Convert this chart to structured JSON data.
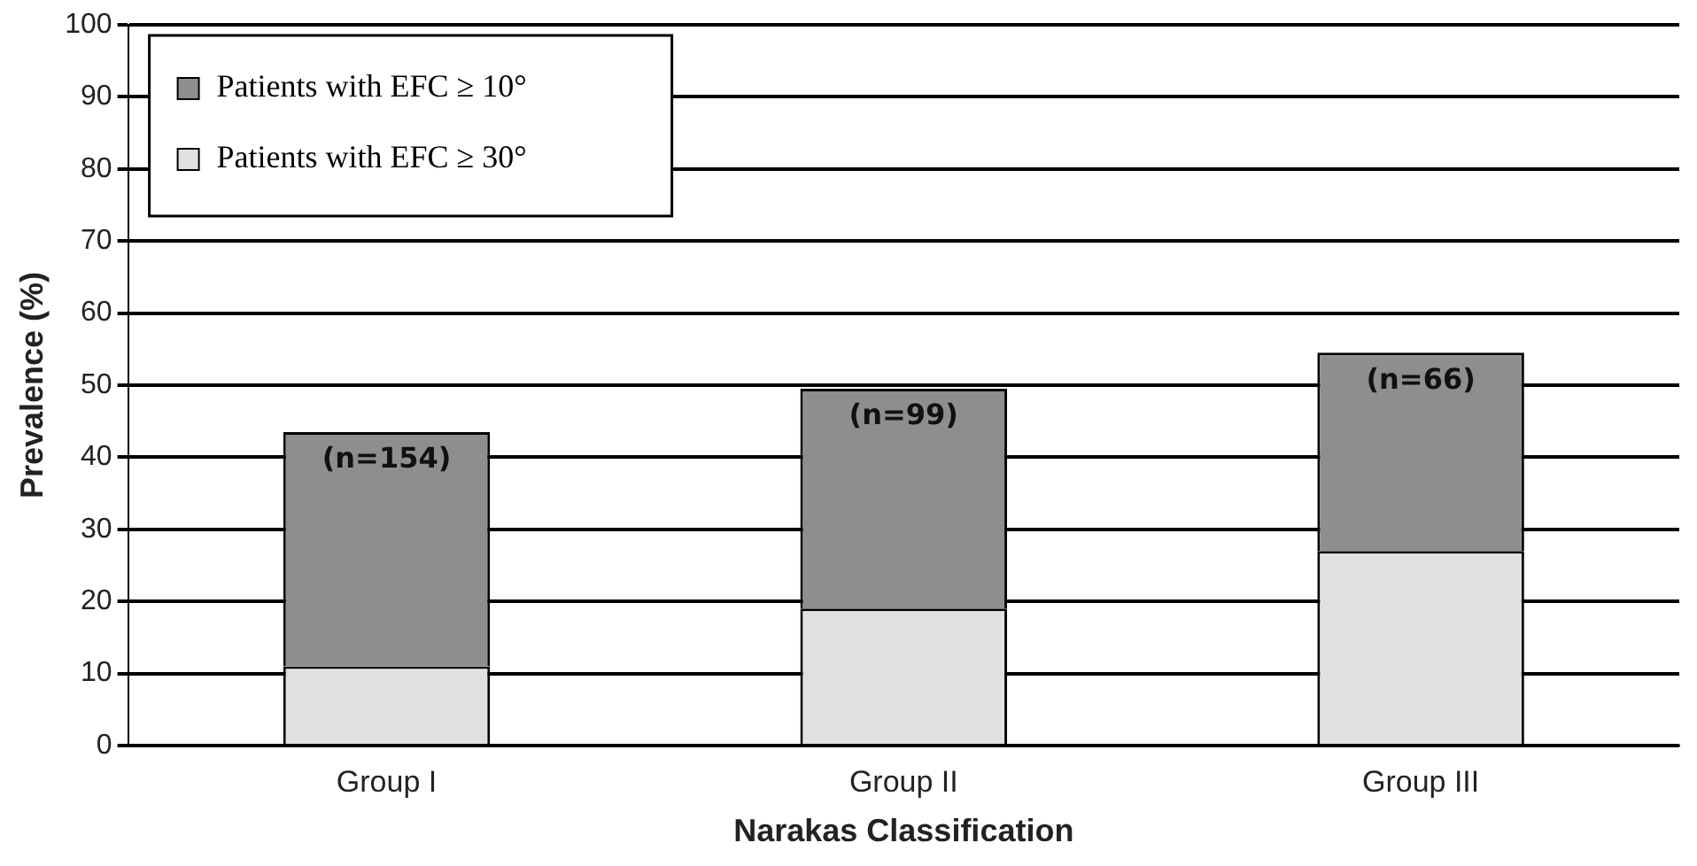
{
  "chart_data": {
    "type": "bar",
    "stacked": true,
    "xlabel": "Narakas Classification",
    "ylabel": "Prevalence (%)",
    "categories": [
      "Group I",
      "Group II",
      "Group III"
    ],
    "series": [
      {
        "name": "Patients with EFC ≥ 30°",
        "color": "#e0e0e0",
        "values": [
          11,
          19,
          27
        ]
      },
      {
        "name": "Patients with EFC ≥ 10°",
        "color": "#8e8e8e",
        "values": [
          32.5,
          30.5,
          27.5
        ]
      }
    ],
    "ylim": [
      0,
      100
    ],
    "yticks": [
      0,
      10,
      20,
      30,
      40,
      50,
      60,
      70,
      80,
      90,
      100
    ],
    "grid": "y",
    "legend": "top left",
    "annotations": [
      "(n=154)",
      "(n=99)",
      "(n=66)"
    ]
  }
}
